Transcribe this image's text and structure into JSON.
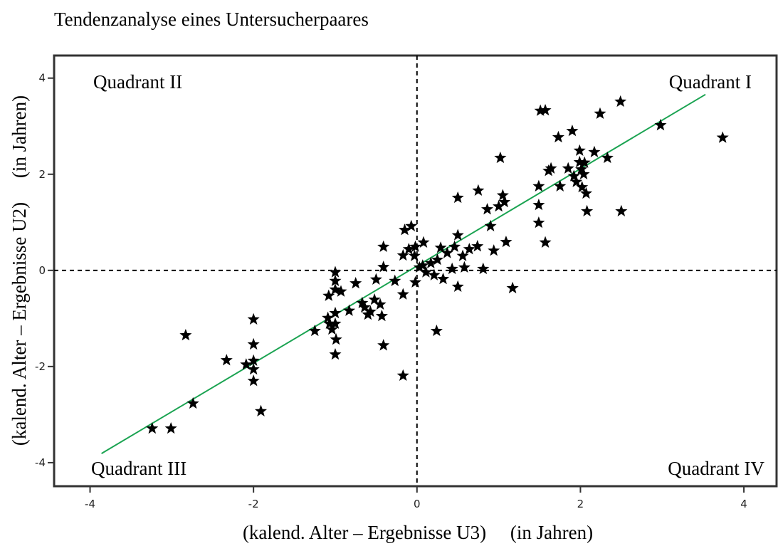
{
  "chart_data": {
    "type": "scatter",
    "title": "Tendenzanalyse eines Untersucherpaares",
    "x_label": "(kalend. Alter – Ergebnisse U3)     (in Jahren)",
    "y_label": "(kalend. Alter – Ergebnisse U2)     (in Jahren)",
    "annotations": [
      "Quadrant I",
      "Quadrant II",
      "Quadrant III",
      "Quadrant IV"
    ],
    "xlim": [
      -4.44,
      4.4
    ],
    "ylim": [
      -4.49,
      4.47
    ],
    "xticks": [
      -4,
      -2,
      0,
      2,
      4
    ],
    "yticks": [
      -4,
      -2,
      0,
      2,
      4
    ],
    "hline": 0,
    "vline": 0,
    "color": "#000000",
    "fit": {
      "color": "#1aa351",
      "x": [
        -3.86,
        3.53
      ],
      "y": [
        -3.81,
        3.66
      ]
    },
    "x": [
      -3.24,
      -3.01,
      -2.74,
      -2.83,
      -2.33,
      -2.09,
      -2.0,
      -2.0,
      -2.0,
      -2.0,
      -2.0,
      -1.91,
      -1.25,
      -1.09,
      -1.08,
      -1.07,
      -1.04,
      -1.0,
      -1.0,
      -1.0,
      -1.0,
      -1.0,
      -0.99,
      -1.0,
      -0.93,
      -0.83,
      -0.75,
      -0.67,
      -0.64,
      -0.6,
      -0.57,
      -0.52,
      -0.5,
      -0.45,
      -0.43,
      -0.41,
      -0.41,
      -0.41,
      -0.27,
      -0.17,
      -0.17,
      -0.17,
      -0.15,
      -0.1,
      -0.07,
      -0.03,
      -0.02,
      -0.02,
      0.03,
      0.07,
      0.08,
      0.11,
      0.17,
      0.21,
      0.24,
      0.25,
      0.29,
      0.32,
      0.37,
      0.43,
      0.46,
      0.5,
      0.5,
      0.5,
      0.56,
      0.58,
      0.64,
      0.74,
      0.75,
      0.81,
      0.86,
      0.9,
      0.94,
      1.0,
      1.02,
      1.05,
      1.07,
      1.09,
      1.17,
      1.49,
      1.49,
      1.49,
      1.51,
      1.57,
      1.57,
      1.61,
      1.64,
      1.73,
      1.75,
      1.85,
      1.9,
      1.92,
      1.95,
      1.99,
      1.99,
      2.01,
      2.02,
      2.04,
      2.05,
      2.07,
      2.08,
      2.17,
      2.24,
      2.33,
      2.49,
      2.5,
      2.98,
      3.74
    ],
    "y": [
      -3.29,
      -3.29,
      -2.77,
      -1.35,
      -1.87,
      -1.96,
      -1.02,
      -1.54,
      -1.88,
      -2.06,
      -2.3,
      -2.93,
      -1.26,
      -0.99,
      -0.53,
      -1.11,
      -1.23,
      -0.04,
      -0.22,
      -0.4,
      -0.89,
      -1.11,
      -1.44,
      -1.75,
      -0.44,
      -0.84,
      -0.27,
      -0.68,
      -0.77,
      -0.92,
      -0.86,
      -0.61,
      -0.19,
      -0.71,
      -0.95,
      -1.56,
      0.07,
      0.49,
      -0.22,
      -2.19,
      -0.5,
      0.31,
      0.84,
      0.44,
      0.92,
      0.3,
      0.49,
      -0.25,
      0.06,
      0.1,
      0.58,
      -0.04,
      0.15,
      -0.1,
      -1.26,
      0.22,
      0.47,
      -0.18,
      0.36,
      0.03,
      0.49,
      -0.34,
      0.73,
      1.51,
      0.3,
      0.06,
      0.44,
      0.5,
      1.66,
      0.03,
      1.27,
      0.92,
      0.41,
      1.33,
      2.34,
      1.56,
      1.42,
      0.59,
      -0.37,
      0.99,
      1.36,
      1.75,
      3.32,
      3.33,
      0.58,
      2.07,
      2.12,
      2.77,
      1.75,
      2.12,
      2.9,
      1.96,
      1.84,
      2.49,
      2.25,
      2.1,
      1.73,
      2.0,
      2.24,
      1.6,
      1.23,
      2.46,
      3.26,
      2.34,
      3.51,
      1.23,
      3.02,
      2.76
    ]
  }
}
